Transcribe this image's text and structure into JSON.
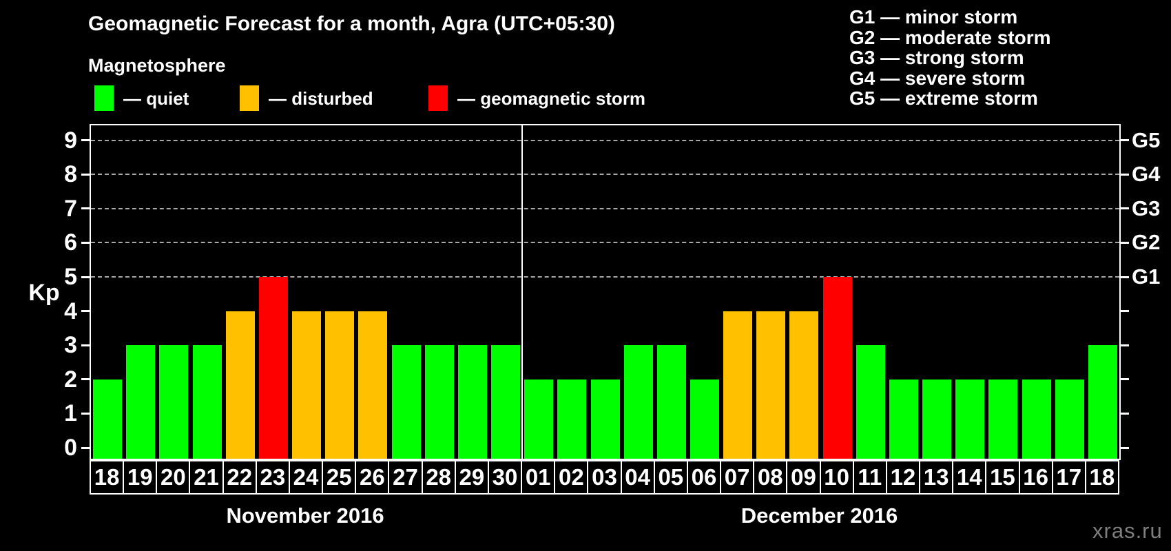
{
  "title": "Geomagnetic Forecast for a month, Agra (UTC+05:30)",
  "legend": {
    "heading": "Magnetosphere",
    "items": [
      {
        "name": "quiet",
        "label": "— quiet",
        "color": "#00ff00"
      },
      {
        "name": "disturbed",
        "label": "— disturbed",
        "color": "#ffc000"
      },
      {
        "name": "storm",
        "label": "— geomagnetic storm",
        "color": "#ff0000"
      }
    ]
  },
  "storm_scale": {
    "items": [
      "G1 — minor storm",
      "G2 — moderate storm",
      "G3 — strong storm",
      "G4 — severe storm",
      "G5 — extreme storm"
    ]
  },
  "watermark": "xras.ru",
  "colors": {
    "background": "#000000",
    "axis": "#ffffff",
    "grid": "#a8a8a8",
    "quiet": "#00ff00",
    "disturbed": "#ffc000",
    "storm": "#ff0000",
    "watermark": "#7e7e7e"
  },
  "chart_data": {
    "type": "bar",
    "title": "Geomagnetic Forecast for a month, Agra (UTC+05:30)",
    "xlabel": "",
    "ylabel": "Kp",
    "ylim": [
      0,
      9
    ],
    "yticks": [
      0,
      1,
      2,
      3,
      4,
      5,
      6,
      7,
      8,
      9
    ],
    "grid_levels": [
      5,
      6,
      7,
      8,
      9
    ],
    "grid": true,
    "legend_position": "top-left",
    "right_axis_labels": [
      {
        "level": 5,
        "label": "G1"
      },
      {
        "level": 6,
        "label": "G2"
      },
      {
        "level": 7,
        "label": "G3"
      },
      {
        "level": 8,
        "label": "G4"
      },
      {
        "level": 9,
        "label": "G5"
      }
    ],
    "months": [
      {
        "label": "November 2016",
        "days": [
          {
            "day": "18",
            "kp": 2,
            "status": "quiet"
          },
          {
            "day": "19",
            "kp": 3,
            "status": "quiet"
          },
          {
            "day": "20",
            "kp": 3,
            "status": "quiet"
          },
          {
            "day": "21",
            "kp": 3,
            "status": "quiet"
          },
          {
            "day": "22",
            "kp": 4,
            "status": "disturbed"
          },
          {
            "day": "23",
            "kp": 5,
            "status": "storm"
          },
          {
            "day": "24",
            "kp": 4,
            "status": "disturbed"
          },
          {
            "day": "25",
            "kp": 4,
            "status": "disturbed"
          },
          {
            "day": "26",
            "kp": 4,
            "status": "disturbed"
          },
          {
            "day": "27",
            "kp": 3,
            "status": "quiet"
          },
          {
            "day": "28",
            "kp": 3,
            "status": "quiet"
          },
          {
            "day": "29",
            "kp": 3,
            "status": "quiet"
          },
          {
            "day": "30",
            "kp": 3,
            "status": "quiet"
          }
        ]
      },
      {
        "label": "December 2016",
        "days": [
          {
            "day": "01",
            "kp": 2,
            "status": "quiet"
          },
          {
            "day": "02",
            "kp": 2,
            "status": "quiet"
          },
          {
            "day": "03",
            "kp": 2,
            "status": "quiet"
          },
          {
            "day": "04",
            "kp": 3,
            "status": "quiet"
          },
          {
            "day": "05",
            "kp": 3,
            "status": "quiet"
          },
          {
            "day": "06",
            "kp": 2,
            "status": "quiet"
          },
          {
            "day": "07",
            "kp": 4,
            "status": "disturbed"
          },
          {
            "day": "08",
            "kp": 4,
            "status": "disturbed"
          },
          {
            "day": "09",
            "kp": 4,
            "status": "disturbed"
          },
          {
            "day": "10",
            "kp": 5,
            "status": "storm"
          },
          {
            "day": "11",
            "kp": 3,
            "status": "quiet"
          },
          {
            "day": "12",
            "kp": 2,
            "status": "quiet"
          },
          {
            "day": "13",
            "kp": 2,
            "status": "quiet"
          },
          {
            "day": "14",
            "kp": 2,
            "status": "quiet"
          },
          {
            "day": "15",
            "kp": 2,
            "status": "quiet"
          },
          {
            "day": "16",
            "kp": 2,
            "status": "quiet"
          },
          {
            "day": "17",
            "kp": 2,
            "status": "quiet"
          },
          {
            "day": "18",
            "kp": 3,
            "status": "quiet"
          }
        ]
      }
    ]
  }
}
